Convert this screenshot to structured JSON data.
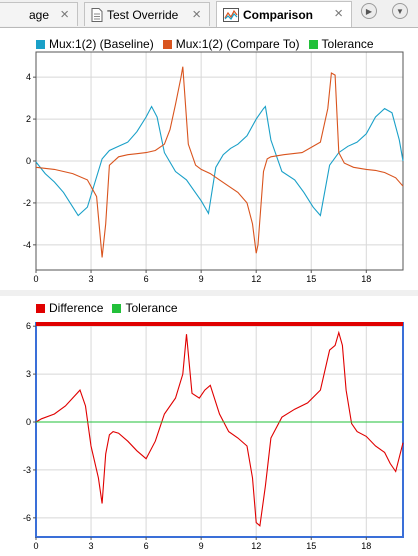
{
  "tabs": [
    {
      "label": "age",
      "close": "×"
    },
    {
      "label": "Test Override",
      "close": "×"
    },
    {
      "label": "Comparison",
      "close": "×"
    }
  ],
  "colors": {
    "baseline": "#1aa0c8",
    "compare": "#d9541e",
    "tolerance": "#22c03a",
    "difference": "#e00000",
    "selection_border": "#3a6fd8",
    "grid": "#d8d8d8"
  },
  "chart_data": [
    {
      "type": "line",
      "legend": [
        "Mux:1(2) (Baseline)",
        "Mux:1(2) (Compare To)",
        "Tolerance"
      ],
      "xlim": [
        0,
        20
      ],
      "ylim": [
        -5.2,
        5.2
      ],
      "xticks": [
        0,
        3,
        6,
        9,
        12,
        15,
        18
      ],
      "yticks": [
        -4,
        -2,
        0,
        2,
        4
      ],
      "grid": true,
      "legend_position": "top",
      "series": [
        {
          "name": "Mux:1(2) (Baseline)",
          "x": [
            0,
            0.5,
            1,
            1.5,
            2.3,
            2.8,
            3.6,
            4,
            4.5,
            5,
            5.5,
            6,
            6.3,
            6.6,
            7,
            7.6,
            8.2,
            8.6,
            9,
            9.4,
            9.8,
            10.2,
            10.6,
            11,
            11.5,
            12,
            12.4,
            12.5,
            12.8,
            13.4,
            14.1,
            14.6,
            15.1,
            15.5,
            16,
            16.5,
            17,
            17.5,
            18,
            18.5,
            19,
            19.4,
            19.8,
            20
          ],
          "y": [
            -0.05,
            -0.6,
            -1.0,
            -1.5,
            -2.6,
            -2.2,
            0.1,
            0.5,
            0.7,
            0.9,
            1.4,
            2.1,
            2.6,
            2.1,
            0.4,
            -0.5,
            -0.9,
            -1.4,
            -1.9,
            -2.5,
            -0.3,
            0.3,
            0.6,
            0.8,
            1.2,
            2.0,
            2.5,
            2.6,
            1.0,
            -0.5,
            -0.9,
            -1.5,
            -2.2,
            -2.6,
            -0.2,
            0.4,
            0.7,
            0.9,
            1.3,
            2.1,
            2.5,
            2.3,
            1.0,
            0.0
          ]
        },
        {
          "name": "Mux:1(2) (Compare To)",
          "x": [
            0,
            1,
            2,
            2.8,
            3.3,
            3.6,
            3.8,
            4,
            4.5,
            5,
            5.5,
            6,
            6.5,
            7,
            7.3,
            7.6,
            7.9,
            8,
            8.3,
            8.7,
            9,
            9.5,
            10,
            10.5,
            11,
            11.5,
            11.8,
            12,
            12.1,
            12.4,
            12.6,
            12.8,
            13.5,
            14.5,
            15.5,
            15.9,
            16.1,
            16.3,
            16.5,
            16.8,
            17.3,
            18,
            18.5,
            19,
            19.6,
            20
          ],
          "y": [
            -0.3,
            -0.4,
            -0.6,
            -0.9,
            -1.7,
            -4.6,
            -3.0,
            -0.2,
            0.2,
            0.3,
            0.35,
            0.4,
            0.5,
            0.8,
            1.5,
            2.7,
            4.0,
            4.5,
            0.8,
            -0.2,
            -0.4,
            -0.6,
            -0.9,
            -1.2,
            -1.5,
            -2.0,
            -3.0,
            -4.4,
            -4.0,
            -0.5,
            0.1,
            0.2,
            0.3,
            0.4,
            0.9,
            2.5,
            4.2,
            4.1,
            0.4,
            -0.1,
            -0.3,
            -0.4,
            -0.45,
            -0.55,
            -0.8,
            -1.2
          ]
        },
        {
          "name": "Tolerance",
          "x": [],
          "y": []
        }
      ]
    },
    {
      "type": "line",
      "legend": [
        "Difference",
        "Tolerance"
      ],
      "xlim": [
        0,
        20
      ],
      "ylim": [
        -7.2,
        6.2
      ],
      "xticks": [
        0,
        3,
        6,
        9,
        12,
        15,
        18
      ],
      "yticks": [
        -6,
        -3,
        0,
        3,
        6
      ],
      "grid": true,
      "legend_position": "top",
      "series": [
        {
          "name": "Difference",
          "x": [
            0,
            0.3,
            1,
            1.6,
            2.4,
            2.7,
            3.0,
            3.4,
            3.6,
            3.8,
            4.0,
            4.2,
            4.5,
            5.0,
            5.5,
            6.0,
            6.5,
            7.0,
            7.6,
            8.0,
            8.2,
            8.5,
            8.9,
            9.2,
            9.5,
            10.0,
            10.5,
            11.0,
            11.5,
            11.8,
            12.0,
            12.2,
            12.5,
            12.8,
            13.4,
            14.1,
            14.8,
            15.5,
            16.0,
            16.3,
            16.5,
            16.7,
            16.9,
            17.2,
            17.5,
            18.0,
            18.5,
            19.0,
            19.3,
            19.6,
            20.0
          ],
          "y": [
            0.0,
            0.2,
            0.5,
            1.0,
            2.0,
            1.0,
            -1.5,
            -3.5,
            -5.1,
            -2.0,
            -0.8,
            -0.6,
            -0.7,
            -1.2,
            -1.8,
            -2.3,
            -1.2,
            0.5,
            1.5,
            3.0,
            5.5,
            1.8,
            1.5,
            2.0,
            2.3,
            0.5,
            -0.6,
            -1.0,
            -1.5,
            -3.5,
            -6.3,
            -6.5,
            -4.0,
            -1.0,
            0.3,
            0.8,
            1.2,
            2.0,
            4.5,
            4.8,
            5.6,
            4.8,
            2.0,
            -0.1,
            -0.6,
            -0.9,
            -1.5,
            -1.9,
            -2.6,
            -3.1,
            -1.3
          ]
        },
        {
          "name": "Tolerance",
          "x": [
            0,
            20
          ],
          "y": [
            0,
            0
          ]
        }
      ]
    }
  ]
}
